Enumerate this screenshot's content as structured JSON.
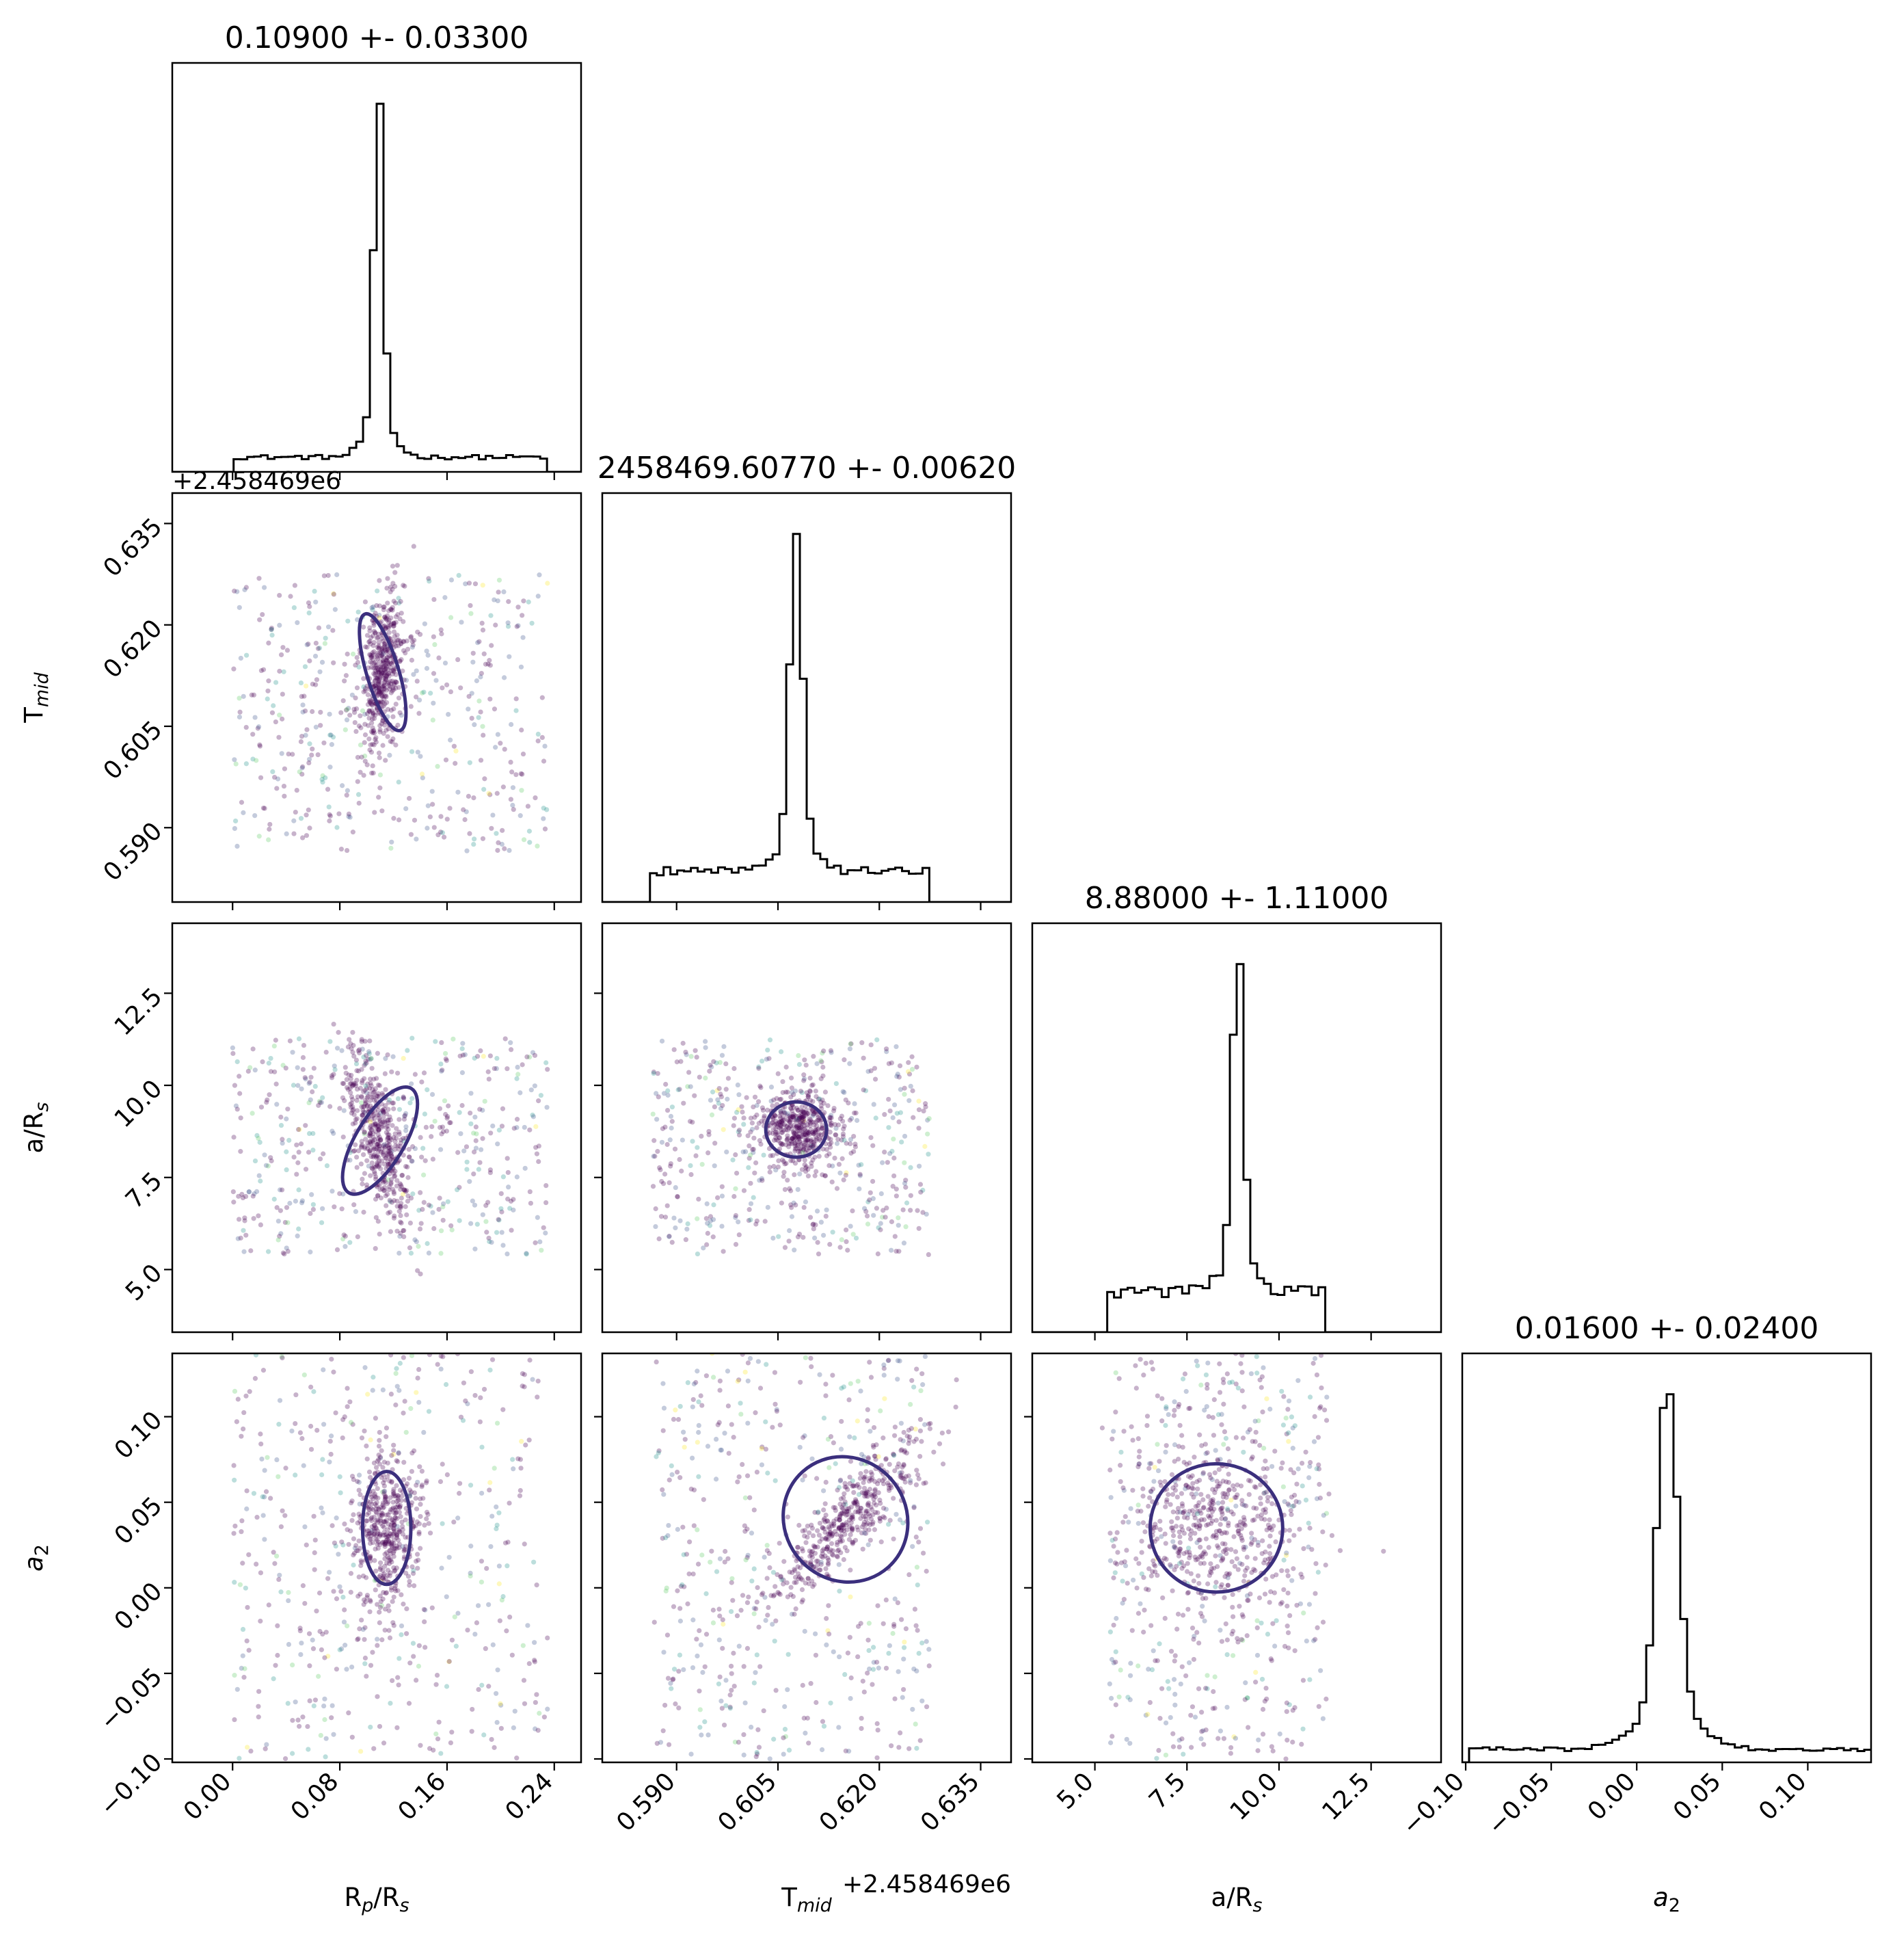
{
  "chart_data": {
    "type": "scatter",
    "colors": {
      "points": [
        "#440154",
        "#3b528b",
        "#21918c",
        "#5ec962",
        "#fde725"
      ],
      "contour": "#3b2f7d",
      "hist": "#000000"
    },
    "parameters": [
      {
        "key": "rp",
        "label_main": "R",
        "label_sub": "p",
        "label_mid": "/R",
        "label_sub2": "s",
        "title": "0.10900 +- 0.03300",
        "range": [
          -0.045,
          0.26
        ],
        "ticks": [
          0.0,
          0.08,
          0.16,
          0.24
        ],
        "tick_labels": [
          "0.00",
          "0.08",
          "0.16",
          "0.24"
        ],
        "offset": ""
      },
      {
        "key": "tmid",
        "label_main": "T",
        "label_sub": "mid",
        "label_mid": "",
        "label_sub2": "",
        "title": "2458469.60770 +- 0.00620",
        "range": [
          0.579,
          0.6395
        ],
        "ticks": [
          0.59,
          0.605,
          0.62,
          0.635
        ],
        "tick_labels": [
          "0.590",
          "0.605",
          "0.620",
          "0.635"
        ],
        "offset": "+2.458469e6"
      },
      {
        "key": "ars",
        "label_main": "a/R",
        "label_sub": "s",
        "label_mid": "",
        "label_sub2": "",
        "title": "8.88000 +- 1.11000",
        "range": [
          3.3,
          14.4
        ],
        "ticks": [
          5.0,
          7.5,
          10.0,
          12.5
        ],
        "tick_labels": [
          "5.0",
          "7.5",
          "10.0",
          "12.5"
        ],
        "offset": ""
      },
      {
        "key": "a2",
        "label_main": "a",
        "label_sub": "2",
        "label_mid": "",
        "label_sub2": "",
        "label_italic": true,
        "title": "0.01600 +- 0.02400",
        "range": [
          -0.102,
          0.137
        ],
        "ticks": [
          -0.1,
          -0.05,
          0.0,
          0.05,
          0.1
        ],
        "tick_labels": [
          "−0.10",
          "−0.05",
          "0.00",
          "0.05",
          "0.10"
        ],
        "offset": ""
      }
    ],
    "histograms": [
      {
        "param": "rp",
        "peak": 0.109,
        "sigma": 0.0035,
        "bg_low": 0.0,
        "bg_high": 0.235,
        "bg_level": 0.045,
        "peak_level": 1.0
      },
      {
        "param": "tmid",
        "peak": 0.6077,
        "sigma": 0.0009,
        "bg_low": 0.5865,
        "bg_high": 0.6275,
        "bg_level": 0.1,
        "peak_level": 1.0
      },
      {
        "param": "ars",
        "peak": 8.88,
        "sigma": 0.15,
        "bg_low": 5.4,
        "bg_high": 11.3,
        "bg_level": 0.13,
        "peak_level": 1.0
      },
      {
        "param": "a2",
        "peak": 0.018,
        "sigma": 0.006,
        "bg_low": -0.1,
        "bg_high": 0.137,
        "bg_level": 0.04,
        "peak_level": 1.0
      }
    ],
    "clusters": {
      "rp_tmid": {
        "cx": 0.112,
        "cy": 0.613,
        "sx": 0.008,
        "sy": 0.006,
        "rho": 0.3
      },
      "rp_ars": {
        "cx": 0.11,
        "cy": 8.5,
        "sx": 0.012,
        "sy": 1.1,
        "rho": -0.6
      },
      "rp_a2": {
        "cx": 0.115,
        "cy": 0.035,
        "sx": 0.012,
        "sy": 0.022,
        "rho": 0.0
      },
      "tmid_ars": {
        "cx": 0.6077,
        "cy": 8.8,
        "sx": 0.003,
        "sy": 0.5,
        "rho": 0.0
      },
      "tmid_a2": {
        "cx": 0.615,
        "cy": 0.04,
        "sx": 0.006,
        "sy": 0.025,
        "rho": 0.9
      },
      "ars_a2": {
        "cx": 8.3,
        "cy": 0.035,
        "sx": 1.2,
        "sy": 0.025,
        "rho": 0.0
      }
    },
    "xlabel_offset": "+2.458469e6",
    "ylabel_offset": "+2.458469e6"
  }
}
